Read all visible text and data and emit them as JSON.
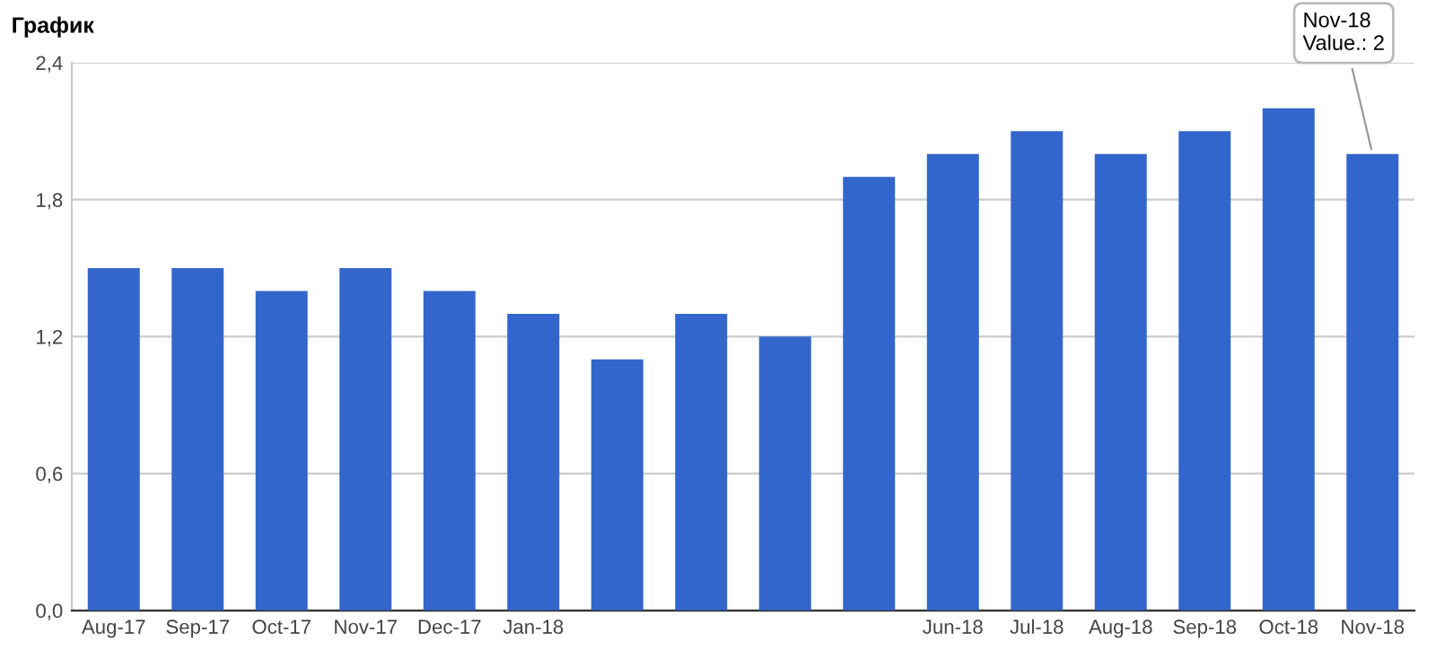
{
  "chart_data": {
    "type": "bar",
    "title": "График",
    "categories": [
      "Aug-17",
      "Sep-17",
      "Oct-17",
      "Nov-17",
      "Dec-17",
      "Jan-18",
      null,
      null,
      null,
      null,
      "Jun-18",
      "Jul-18",
      "Aug-18",
      "Sep-18",
      "Oct-18",
      "Nov-18"
    ],
    "values": [
      1.5,
      1.5,
      1.4,
      1.5,
      1.4,
      1.3,
      1.1,
      1.3,
      1.2,
      1.9,
      2.0,
      2.1,
      2.0,
      2.1,
      2.2,
      2.0
    ],
    "color": "#3366cc",
    "ylim": [
      0,
      2.4
    ],
    "yticks": [
      {
        "value": 0,
        "label": "0,0"
      },
      {
        "value": 0.6,
        "label": "0,6"
      },
      {
        "value": 1.2,
        "label": "1,2"
      },
      {
        "value": 1.8,
        "label": "1,8"
      },
      {
        "value": 2.4,
        "label": "2,4"
      }
    ],
    "grid": "y",
    "annotations": [
      {
        "text": "Nov-18\nValue.: 2",
        "x": "Nov-18",
        "y": 2
      }
    ]
  }
}
